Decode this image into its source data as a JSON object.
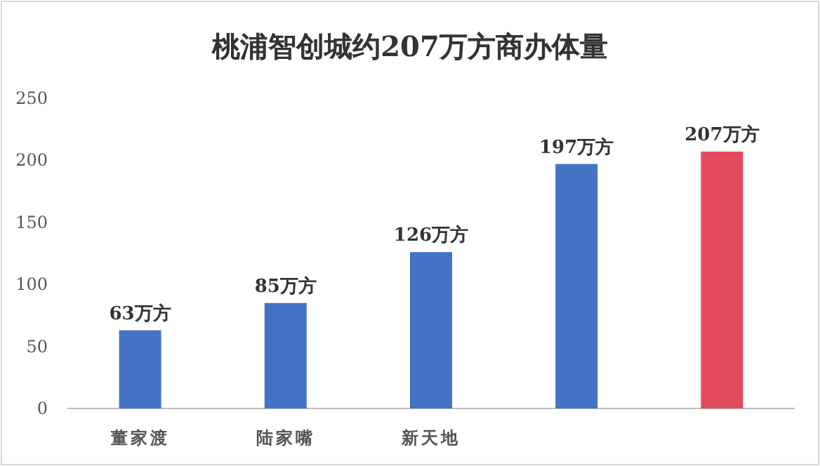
{
  "chart_data": {
    "type": "bar",
    "title": "桃浦智创城约207万方商办体量",
    "categories": [
      "董家渡",
      "陆家嘴",
      "新天地",
      null,
      null
    ],
    "values": [
      63,
      85,
      126,
      197,
      207
    ],
    "colors": [
      "#4472c4",
      "#4472c4",
      "#4472c4",
      "#4472c4",
      "#e24a5e"
    ],
    "value_labels": [
      "63万方",
      "85万方",
      "126万方",
      "197万方",
      "207万方"
    ],
    "ylim": [
      0,
      250
    ],
    "yticks": [
      0,
      50,
      100,
      150,
      200,
      250
    ],
    "grid": false
  }
}
